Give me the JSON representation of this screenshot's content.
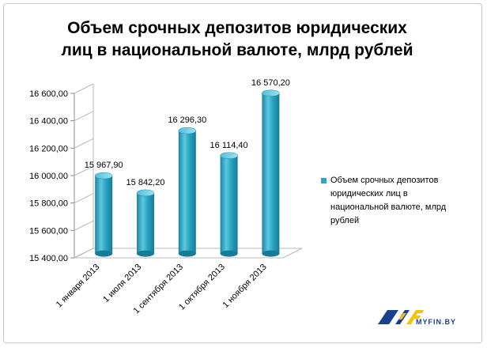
{
  "chart_data": {
    "type": "bar",
    "title": "Объем срочных депозитов юридических лиц в национальной валюте, млрд рублей",
    "title_lines": [
      "Объем срочных депозитов юридических",
      "лиц в национальной валюте, млрд рублей"
    ],
    "categories": [
      "1 января 2013",
      "1 июля 2013",
      "1 сентября 2013",
      "1 октября 2013",
      "1 ноября 2013"
    ],
    "series": [
      {
        "name": "Объем срочных депозитов юридических  лиц в национальной валюте, млрд рублей",
        "values": [
          15967.9,
          15842.2,
          16296.3,
          16114.4,
          16570.2
        ],
        "labels": [
          "15 967,90",
          "15 842,20",
          "16 296,30",
          "16 114,40",
          "16 570,20"
        ],
        "color": "#2ca7c4"
      }
    ],
    "ylim": [
      15400,
      16600
    ],
    "yticks": [
      15400,
      15600,
      15800,
      16000,
      16200,
      16400,
      16600
    ],
    "ytick_labels": [
      "15 400,00",
      "15 600,00",
      "15 800,00",
      "16 000,00",
      "16 200,00",
      "16 400,00",
      "16 600,00"
    ],
    "legend_placement": "right",
    "legend_lines": [
      "Объем срочных депозитов",
      "юридических  лиц в",
      "национальной валюте, млрд",
      "рублей"
    ],
    "grid": false,
    "style": "3d-cylinder"
  },
  "watermark": {
    "text": "MYFIN.BY",
    "colors": {
      "blue": "#1b3f8f",
      "yellow": "#f3c400"
    }
  }
}
